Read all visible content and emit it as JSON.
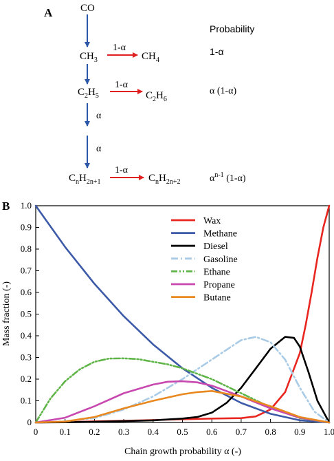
{
  "colors": {
    "arrow_blue": "#2b57a8",
    "arrow_red": "#e02020",
    "text": "#000000"
  },
  "panel_a": {
    "label": "A",
    "probability_header": "Probability",
    "top_species": "CO",
    "steps": [
      {
        "chain": "CH3",
        "chain_base": "CH",
        "chain_sub": "3",
        "product_base": "CH",
        "product_sub": "4",
        "rate": "1-α",
        "probability": "1-α"
      },
      {
        "chain": "C2H5",
        "product": "C2H6",
        "rate": "1-α",
        "probability": "α (1-α)"
      },
      {
        "chain": "CnH2n+1",
        "product": "CnH2n+2",
        "rate": "1-α",
        "probability_base": "α",
        "probability_sup": "n-1",
        "probability_rest": " (1-α)"
      }
    ],
    "growth_labels": [
      "α",
      "α"
    ]
  },
  "panel_b": {
    "label": "B",
    "chart_data": {
      "type": "line",
      "xlabel": "Chain growth probability α (-)",
      "ylabel": "Mass fraction (-)",
      "xlim": [
        0,
        1
      ],
      "ylim": [
        0,
        1
      ],
      "xticks": [
        "0",
        "0.1",
        "0.2",
        "0.3",
        "0.4",
        "0.5",
        "0.6",
        "0.7",
        "0.8",
        "0.9",
        "1.0"
      ],
      "yticks": [
        "0",
        "0.1",
        "0.2",
        "0.3",
        "0.4",
        "0.5",
        "0.6",
        "0.7",
        "0.8",
        "0.9",
        "1.0"
      ],
      "grid": false,
      "legend_position": "top-right",
      "series": [
        {
          "name": "Wax",
          "color": "#e8261f",
          "dash": "solid",
          "x": [
            0,
            0.1,
            0.2,
            0.3,
            0.4,
            0.5,
            0.6,
            0.7,
            0.75,
            0.8,
            0.85,
            0.9,
            0.92,
            0.94,
            0.96,
            0.98,
            1.0
          ],
          "y": [
            0,
            0.002,
            0.005,
            0.008,
            0.011,
            0.015,
            0.018,
            0.02,
            0.028,
            0.06,
            0.14,
            0.32,
            0.45,
            0.6,
            0.76,
            0.9,
            1.0
          ]
        },
        {
          "name": "Methane",
          "color": "#3c5aa8",
          "dash": "solid",
          "x": [
            0,
            0.1,
            0.2,
            0.3,
            0.4,
            0.5,
            0.6,
            0.7,
            0.8,
            0.9,
            1.0
          ],
          "y": [
            1.0,
            0.81,
            0.64,
            0.49,
            0.36,
            0.25,
            0.16,
            0.09,
            0.04,
            0.01,
            0
          ]
        },
        {
          "name": "Diesel",
          "color": "#000000",
          "dash": "solid",
          "x": [
            0,
            0.1,
            0.2,
            0.3,
            0.4,
            0.5,
            0.55,
            0.6,
            0.65,
            0.7,
            0.75,
            0.8,
            0.85,
            0.88,
            0.9,
            0.93,
            0.96,
            1.0
          ],
          "y": [
            0,
            0.001,
            0.003,
            0.006,
            0.01,
            0.018,
            0.025,
            0.045,
            0.09,
            0.16,
            0.25,
            0.34,
            0.395,
            0.39,
            0.35,
            0.23,
            0.1,
            0
          ]
        },
        {
          "name": "Gasoline",
          "color": "#a9cbe6",
          "dash": "dashdot",
          "x": [
            0,
            0.1,
            0.2,
            0.3,
            0.4,
            0.5,
            0.6,
            0.7,
            0.75,
            0.8,
            0.85,
            0.9,
            0.95,
            1.0
          ],
          "y": [
            0,
            0.005,
            0.02,
            0.06,
            0.12,
            0.2,
            0.29,
            0.38,
            0.395,
            0.37,
            0.29,
            0.16,
            0.05,
            0
          ]
        },
        {
          "name": "Ethane",
          "color": "#5fb548",
          "dash": "dashdotdot",
          "x": [
            0,
            0.05,
            0.1,
            0.15,
            0.2,
            0.25,
            0.3,
            0.35,
            0.4,
            0.45,
            0.5,
            0.6,
            0.7,
            0.8,
            0.9,
            1.0
          ],
          "y": [
            0,
            0.11,
            0.19,
            0.245,
            0.28,
            0.295,
            0.296,
            0.292,
            0.28,
            0.268,
            0.25,
            0.2,
            0.135,
            0.07,
            0.02,
            0
          ]
        },
        {
          "name": "Propane",
          "color": "#c848b0",
          "dash": "solid",
          "x": [
            0,
            0.1,
            0.2,
            0.3,
            0.4,
            0.45,
            0.5,
            0.55,
            0.6,
            0.7,
            0.8,
            0.9,
            1.0
          ],
          "y": [
            0,
            0.022,
            0.075,
            0.135,
            0.175,
            0.188,
            0.19,
            0.185,
            0.17,
            0.12,
            0.065,
            0.022,
            0
          ]
        },
        {
          "name": "Butane",
          "color": "#e8881f",
          "dash": "solid",
          "x": [
            0,
            0.1,
            0.2,
            0.3,
            0.4,
            0.5,
            0.55,
            0.6,
            0.7,
            0.8,
            0.9,
            1.0
          ],
          "y": [
            0,
            0.004,
            0.025,
            0.065,
            0.1,
            0.13,
            0.14,
            0.145,
            0.12,
            0.075,
            0.025,
            0
          ]
        }
      ]
    }
  }
}
